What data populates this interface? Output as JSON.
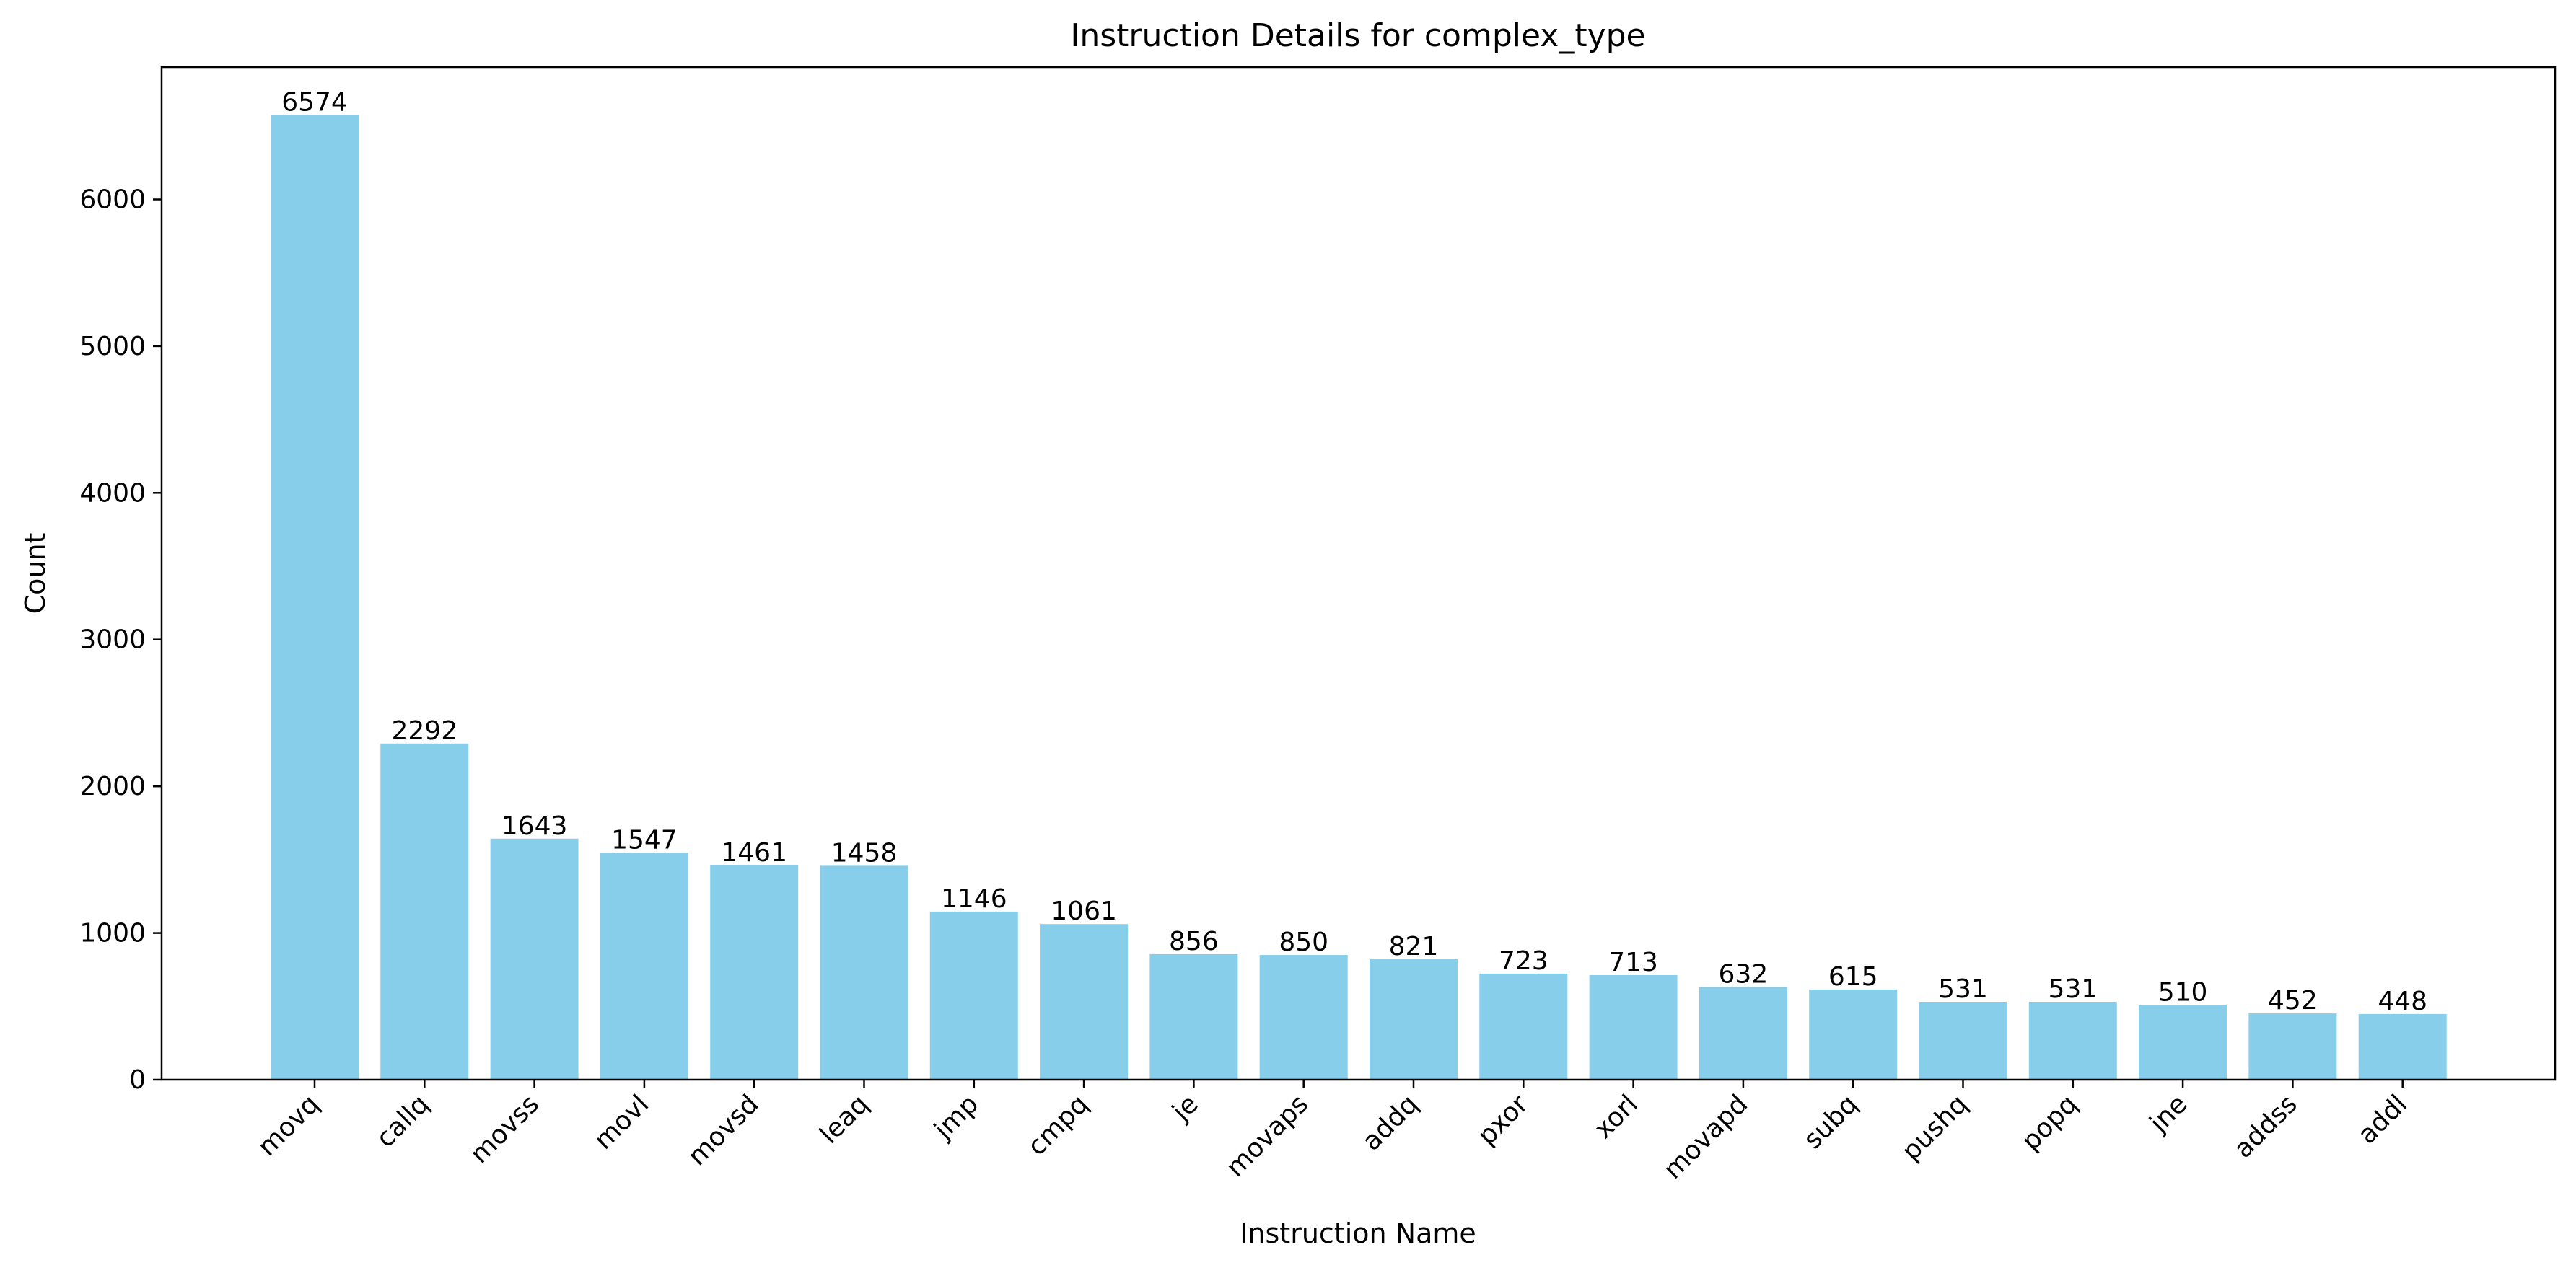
{
  "chart_data": {
    "type": "bar",
    "title": "Instruction Details for complex_type",
    "xlabel": "Instruction Name",
    "ylabel": "Count",
    "categories": [
      "movq",
      "callq",
      "movss",
      "movl",
      "movsd",
      "leaq",
      "jmp",
      "cmpq",
      "je",
      "movaps",
      "addq",
      "pxor",
      "xorl",
      "movapd",
      "subq",
      "pushq",
      "popq",
      "jne",
      "addss",
      "addl"
    ],
    "values": [
      6574,
      2292,
      1643,
      1547,
      1461,
      1458,
      1146,
      1061,
      856,
      850,
      821,
      723,
      713,
      632,
      615,
      531,
      531,
      510,
      452,
      448
    ],
    "ylim": [
      0,
      6902
    ],
    "yticks": [
      0,
      1000,
      2000,
      3000,
      4000,
      5000,
      6000
    ],
    "bar_color": "#87CEEB",
    "grid": false,
    "legend": null
  }
}
